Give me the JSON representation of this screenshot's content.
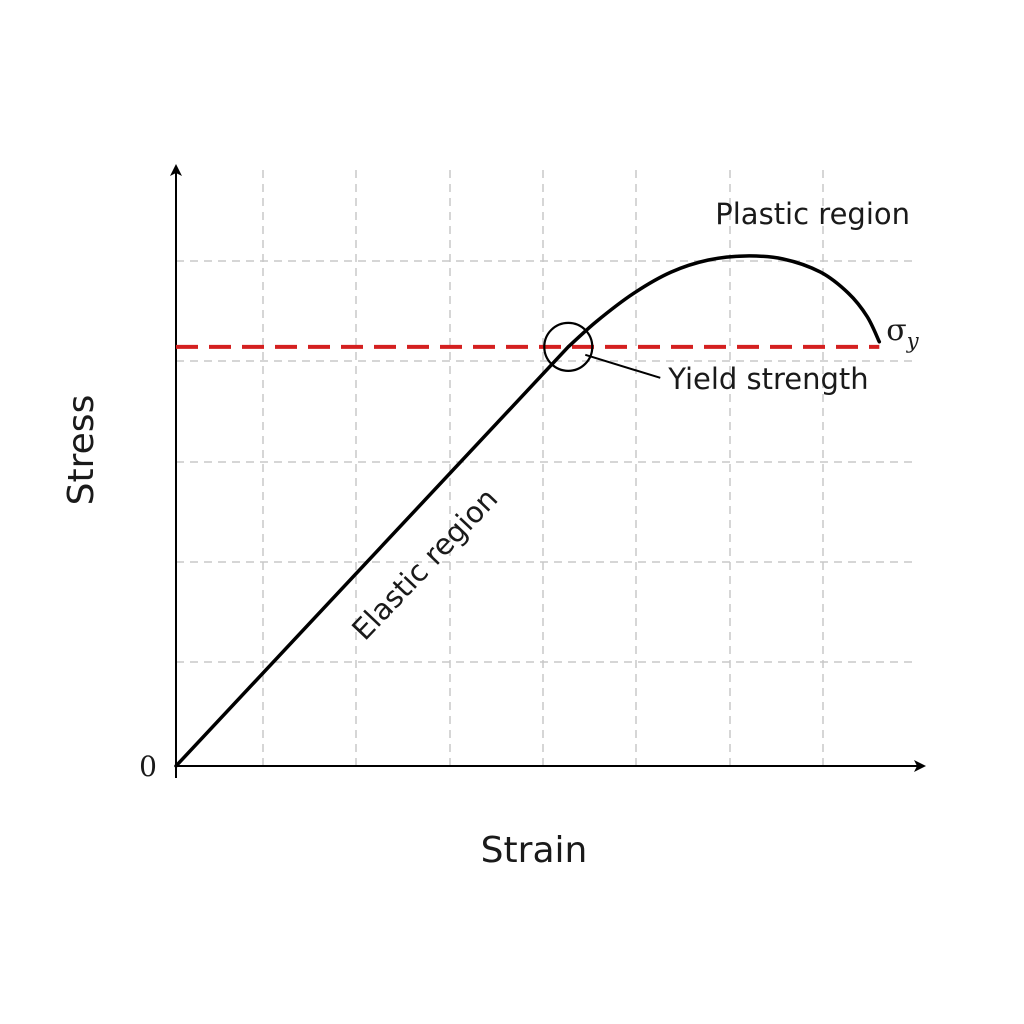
{
  "chart_data": {
    "type": "line",
    "title": "",
    "xlabel": "Strain",
    "ylabel": "Stress",
    "origin_label": "0",
    "grid": true,
    "axes_numbered": false,
    "series": [
      {
        "points": [
          [
            0,
            0
          ],
          [
            0.42,
            0.415
          ],
          [
            0.45,
            0.44
          ],
          [
            0.49,
            0.468
          ],
          [
            0.53,
            0.489
          ],
          [
            0.57,
            0.501
          ],
          [
            0.61,
            0.505
          ],
          [
            0.65,
            0.502
          ],
          [
            0.69,
            0.489
          ],
          [
            0.72,
            0.468
          ],
          [
            0.74,
            0.445
          ],
          [
            0.753,
            0.42
          ]
        ],
        "color": "#000000"
      }
    ],
    "reference_line": {
      "y": 0.415,
      "label": "σ",
      "label_subscript": "y",
      "color": "#d42020",
      "style": "dashed"
    },
    "annotations": {
      "elastic": "Elastic region",
      "plastic": "Plastic region",
      "yield": "Yield strength"
    },
    "yield_point": [
      0.42,
      0.415
    ]
  }
}
